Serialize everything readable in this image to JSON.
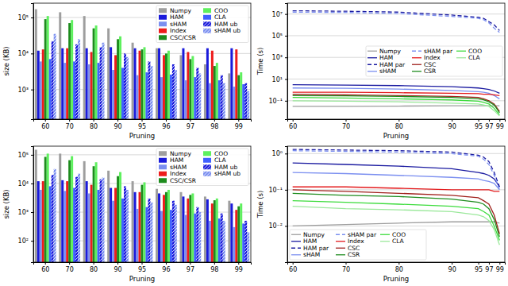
{
  "chart_data": [
    {
      "type": "bar",
      "x_label": "Pruning",
      "y_label": "size (KB)",
      "categories": [
        "60",
        "70",
        "80",
        "90",
        "95",
        "96",
        "97",
        "98",
        "99"
      ],
      "log": "y",
      "ylim": [
        150,
        250000
      ],
      "yticks": [
        {
          "value": 1000,
          "label": "10³"
        },
        {
          "value": 10000,
          "label": "10⁴"
        },
        {
          "value": 100000,
          "label": "10⁵"
        }
      ],
      "grid": true,
      "legend": "upper right",
      "series": [
        {
          "name": "Numpy",
          "color": "#9e9e9e",
          "values": [
            170000,
            140000,
            110000,
            50000,
            20000,
            14000,
            9000,
            5000,
            2800
          ]
        },
        {
          "name": "HAM",
          "color": "#1a1adb",
          "values": [
            12000,
            14000,
            14000,
            15000,
            14000,
            14000,
            14000,
            14000,
            14000
          ]
        },
        {
          "name": "sHAM",
          "color": "#7b8ff0",
          "values": [
            6000,
            5500,
            5000,
            3500,
            2500,
            2200,
            1800,
            1500,
            1200
          ]
        },
        {
          "name": "Index",
          "color": "#ee1c1c",
          "values": [
            13000,
            14000,
            11000,
            9000,
            12000,
            9000,
            11000,
            12000,
            13000
          ]
        },
        {
          "name": "CSC/CSR",
          "color": "#1e8c1e",
          "values": [
            90000,
            70000,
            50000,
            25000,
            13000,
            10000,
            7000,
            4500,
            2500
          ]
        },
        {
          "name": "COO",
          "color": "#5ef05e",
          "values": [
            110000,
            85000,
            60000,
            30000,
            15000,
            12000,
            8500,
            5500,
            3000
          ]
        },
        {
          "name": "CLA",
          "color": "#4060ff",
          "values": [
            7000,
            6000,
            5500,
            4000,
            3000,
            2600,
            2200,
            1800,
            1400
          ]
        },
        {
          "name": "HAM ub",
          "color": "#1a1adb",
          "values": [
            22000,
            18000,
            15000,
            10000,
            6000,
            5000,
            4000,
            2500,
            1500
          ]
        },
        {
          "name": "sHAM ub",
          "color": "#7b8ff0",
          "values": [
            35000,
            25000,
            20000,
            8000,
            4500,
            3500,
            2800,
            1500,
            900
          ]
        }
      ]
    },
    {
      "type": "line",
      "x_label": "Pruning",
      "y_label": "Time (s)",
      "x": [
        60,
        70,
        80,
        90,
        95,
        96,
        97,
        98,
        99
      ],
      "xlim": [
        59,
        100
      ],
      "xticks": [
        60,
        70,
        80,
        90,
        95,
        97,
        99
      ],
      "log": "y",
      "ylim": [
        0.002,
        100000000
      ],
      "yticks": [
        {
          "value": 0.1,
          "label": "10⁻¹"
        },
        {
          "value": 10,
          "label": "10¹"
        },
        {
          "value": 1000,
          "label": "10³"
        },
        {
          "value": 100000,
          "label": "10⁵"
        },
        {
          "value": 10000000,
          "label": "10⁷"
        }
      ],
      "grid": true,
      "legend": "center right",
      "series": [
        {
          "name": "Numpy",
          "color": "#9e9e9e",
          "line_style": "solid",
          "values": [
            0.03,
            0.03,
            0.032,
            0.035,
            0.035,
            0.035,
            0.035,
            0.035,
            0.035
          ]
        },
        {
          "name": "HAM",
          "color": "#1a1aa0",
          "line_style": "solid",
          "values": [
            3,
            2.8,
            2.5,
            2,
            1.5,
            1.3,
            1.1,
            0.8,
            0.5
          ]
        },
        {
          "name": "HAM par",
          "color": "#1a1aa0",
          "line_style": "dashed",
          "values": [
            20000000,
            18000000,
            15000000,
            8000000,
            5000000,
            4000000,
            2000000,
            1000000,
            300000
          ]
        },
        {
          "name": "sHAM",
          "color": "#7b8ff0",
          "line_style": "solid",
          "values": [
            1.5,
            1.4,
            1.2,
            0.9,
            0.7,
            0.6,
            0.5,
            0.3,
            0.15
          ]
        },
        {
          "name": "sHAM par",
          "color": "#7b8ff0",
          "line_style": "dashed",
          "values": [
            15000000,
            14000000,
            11000000,
            6000000,
            4000000,
            3000000,
            1500000,
            500000,
            200000
          ]
        },
        {
          "name": "Index",
          "color": "#e41a1c",
          "line_style": "solid",
          "values": [
            0.6,
            0.6,
            0.55,
            0.5,
            0.45,
            0.4,
            0.4,
            0.35,
            0.3
          ]
        },
        {
          "name": "CSC",
          "color": "#a0201c",
          "line_style": "solid",
          "values": [
            0.4,
            0.35,
            0.3,
            0.25,
            0.2,
            0.15,
            0.1,
            0.05,
            0.01
          ]
        },
        {
          "name": "CSR",
          "color": "#1e8c1e",
          "line_style": "solid",
          "values": [
            0.3,
            0.28,
            0.25,
            0.2,
            0.15,
            0.12,
            0.08,
            0.04,
            0.008
          ]
        },
        {
          "name": "COO",
          "color": "#3ddc3d",
          "line_style": "solid",
          "values": [
            0.2,
            0.18,
            0.15,
            0.12,
            0.09,
            0.07,
            0.05,
            0.02,
            0.005
          ]
        },
        {
          "name": "CLA",
          "color": "#9be89b",
          "line_style": "solid",
          "values": [
            0.1,
            0.09,
            0.08,
            0.06,
            0.05,
            0.04,
            0.03,
            0.012,
            0.004
          ]
        }
      ]
    },
    {
      "type": "bar",
      "x_label": "Pruning",
      "y_label": "size (KB)",
      "categories": [
        "60",
        "70",
        "80",
        "90",
        "95",
        "96",
        "97",
        "98",
        "99"
      ],
      "log": "y",
      "ylim": [
        18,
        200000
      ],
      "yticks": [
        {
          "value": 100,
          "label": "10²"
        },
        {
          "value": 1000,
          "label": "10³"
        },
        {
          "value": 10000,
          "label": "10⁴"
        },
        {
          "value": 100000,
          "label": "10⁵"
        }
      ],
      "grid": true,
      "legend": "upper right",
      "series": [
        {
          "name": "Numpy",
          "color": "#9e9e9e",
          "values": [
            150000,
            110000,
            60000,
            28000,
            12000,
            6500,
            5000,
            3500,
            2500
          ]
        },
        {
          "name": "HAM",
          "color": "#1a1adb",
          "values": [
            12000,
            13000,
            12000,
            7000,
            5000,
            4500,
            3500,
            2800,
            2000
          ]
        },
        {
          "name": "sHAM",
          "color": "#7b8ff0",
          "values": [
            6000,
            5500,
            4500,
            2500,
            1300,
            1100,
            800,
            500,
            300
          ]
        },
        {
          "name": "Index",
          "color": "#ee1c1c",
          "values": [
            12000,
            12000,
            9000,
            7000,
            5000,
            4000,
            3000,
            2000,
            1200
          ]
        },
        {
          "name": "CSC/CSR",
          "color": "#1e8c1e",
          "values": [
            85000,
            65000,
            40000,
            18000,
            9000,
            5000,
            4000,
            2600,
            1600
          ]
        },
        {
          "name": "COO",
          "color": "#5ef05e",
          "values": [
            110000,
            90000,
            55000,
            25000,
            11000,
            6000,
            4500,
            3000,
            2000
          ]
        },
        {
          "name": "CLA",
          "color": "#4060ff",
          "values": [
            8000,
            7000,
            6000,
            3000,
            1500,
            1200,
            900,
            600,
            400
          ]
        },
        {
          "name": "HAM ub",
          "color": "#1a1adb",
          "values": [
            20000,
            17000,
            14000,
            8000,
            3000,
            2500,
            1500,
            900,
            500
          ]
        },
        {
          "name": "sHAM ub",
          "color": "#7b8ff0",
          "values": [
            32000,
            22000,
            16000,
            6000,
            2200,
            1800,
            1000,
            500,
            200
          ]
        }
      ]
    },
    {
      "type": "line",
      "x_label": "Pruning",
      "y_label": "Time (s)",
      "x": [
        60,
        70,
        80,
        90,
        95,
        96,
        97,
        98,
        99
      ],
      "xlim": [
        59,
        100
      ],
      "xticks": [
        60,
        70,
        80,
        90,
        95,
        97,
        99
      ],
      "log": "y",
      "ylim": [
        0.001,
        1.6
      ],
      "yticks": [
        {
          "value": 0.01,
          "label": "10⁻²"
        },
        {
          "value": 0.1,
          "label": "10⁻¹"
        },
        {
          "value": 1,
          "label": "10⁰"
        }
      ],
      "grid": true,
      "legend": "lower left",
      "series": [
        {
          "name": "Numpy",
          "color": "#9e9e9e",
          "line_style": "solid",
          "values": [
            0.01,
            0.011,
            0.012,
            0.013,
            0.013,
            0.013,
            0.013,
            0.013,
            0.012
          ]
        },
        {
          "name": "HAM",
          "color": "#1a1aa0",
          "line_style": "solid",
          "values": [
            0.55,
            0.5,
            0.45,
            0.38,
            0.3,
            0.28,
            0.25,
            0.2,
            0.12
          ]
        },
        {
          "name": "HAM par",
          "color": "#1a1aa0",
          "line_style": "dashed",
          "values": [
            1.3,
            1.25,
            1.2,
            1.1,
            0.9,
            0.8,
            0.6,
            0.3,
            0.12
          ]
        },
        {
          "name": "sHAM",
          "color": "#7b8ff0",
          "line_style": "solid",
          "values": [
            0.3,
            0.28,
            0.25,
            0.22,
            0.2,
            0.18,
            0.17,
            0.15,
            0.1
          ]
        },
        {
          "name": "sHAM par",
          "color": "#7b8ff0",
          "line_style": "dashed",
          "values": [
            1.2,
            1.15,
            1.1,
            1.0,
            0.85,
            0.7,
            0.5,
            0.25,
            0.1
          ]
        },
        {
          "name": "Index",
          "color": "#e41a1c",
          "line_style": "solid",
          "values": [
            0.12,
            0.12,
            0.11,
            0.1,
            0.1,
            0.1,
            0.1,
            0.09,
            0.09
          ]
        },
        {
          "name": "CSC",
          "color": "#a0201c",
          "line_style": "solid",
          "values": [
            0.1,
            0.09,
            0.08,
            0.07,
            0.06,
            0.05,
            0.04,
            0.02,
            0.006
          ]
        },
        {
          "name": "CSR",
          "color": "#1e8c1e",
          "line_style": "solid",
          "values": [
            0.08,
            0.07,
            0.065,
            0.055,
            0.045,
            0.04,
            0.03,
            0.015,
            0.005
          ]
        },
        {
          "name": "COO",
          "color": "#3ddc3d",
          "line_style": "solid",
          "values": [
            0.05,
            0.045,
            0.04,
            0.035,
            0.03,
            0.025,
            0.02,
            0.01,
            0.004
          ]
        },
        {
          "name": "CLA",
          "color": "#9be89b",
          "line_style": "solid",
          "values": [
            0.035,
            0.03,
            0.028,
            0.025,
            0.02,
            0.018,
            0.014,
            0.008,
            0.003
          ]
        }
      ]
    }
  ]
}
